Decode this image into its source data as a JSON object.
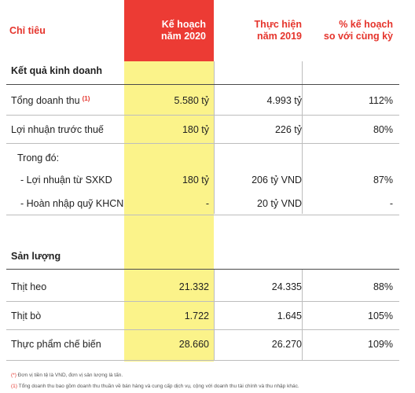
{
  "header": {
    "col_indicator": "Chỉ tiêu",
    "col_plan_line1": "Kế hoạch",
    "col_plan_line2": "năm 2020",
    "col_actual_line1": "Thực hiện",
    "col_actual_line2": "năm 2019",
    "col_pct_line1": "% kế hoạch",
    "col_pct_line2": "so với cùng kỳ"
  },
  "sections": {
    "business": "Kết quả kinh doanh",
    "output": "Sản lượng"
  },
  "rows": {
    "revenue": {
      "label": "Tổng doanh thu",
      "footnote": "(1)",
      "plan": "5.580 tỷ",
      "actual": "4.993 tỷ",
      "pct": "112%"
    },
    "pretax": {
      "label": "Lợi nhuận trước thuế",
      "plan": "180 tỷ",
      "actual": "226 tỷ",
      "pct": "80%"
    },
    "of_which": {
      "label": "Trong đó:"
    },
    "sxkd": {
      "label": "- Lợi nhuận từ SXKD",
      "plan": "180 tỷ",
      "actual": "206 tỷ VND",
      "pct": "87%"
    },
    "khcn": {
      "label": "- Hoàn nhập quỹ KHCN",
      "plan": "-",
      "actual": "20 tỷ VND",
      "pct": "-"
    },
    "pork": {
      "label": "Thịt heo",
      "plan": "21.332",
      "actual": "24.335",
      "pct": "88%"
    },
    "beef": {
      "label": "Thịt bò",
      "plan": "1.722",
      "actual": "1.645",
      "pct": "105%"
    },
    "processed": {
      "label": "Thực phẩm chế biến",
      "plan": "28.660",
      "actual": "26.270",
      "pct": "109%"
    }
  },
  "notes": {
    "unit_mark": "(*)",
    "unit_text": "Đơn vị tiền tệ là VND, đơn vị sản lượng là tấn.",
    "fn1_mark": "(1)",
    "fn1_text": "Tổng doanh thu bao gồm doanh thu thuần về bán hàng và cung cấp dịch vụ, cộng với doanh thu tài chính và thu nhập khác."
  },
  "colors": {
    "accent_red": "#ec3b34",
    "highlight_yellow": "#fbf38a"
  }
}
